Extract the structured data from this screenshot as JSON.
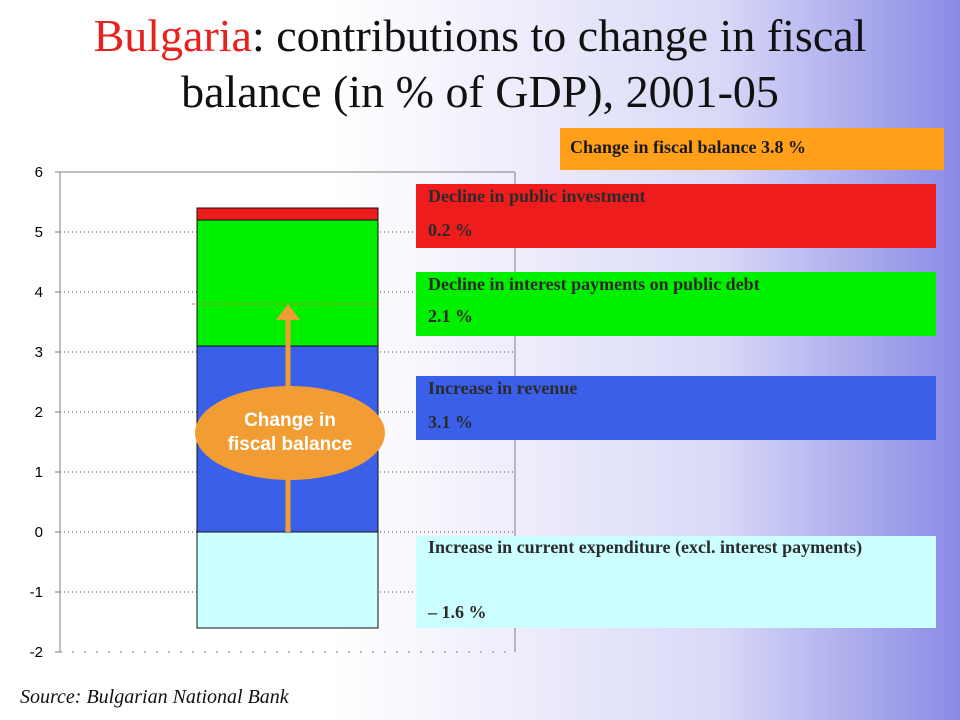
{
  "title": {
    "country": "Bulgaria",
    "rest": ": contributions to change in fiscal",
    "line2": "balance (in % of GDP), 2001-05"
  },
  "total_label": "Change in fiscal balance 3.8 %",
  "arrow_label_line1": "Change in",
  "arrow_label_line2": "fiscal balance",
  "source": "Source: Bulgarian National Bank",
  "colors": {
    "investment": "#ee1c1c",
    "interest": "#00f000",
    "revenue": "#3a5fe8",
    "current_exp": "#ccffff",
    "total": "#ff9f1a",
    "arrow": "#f29d33"
  },
  "legend": [
    {
      "key": "investment",
      "label": "Decline in public investment",
      "value": "0.2 %"
    },
    {
      "key": "interest",
      "label": "Decline in interest payments on public debt",
      "value": "2.1 %"
    },
    {
      "key": "revenue",
      "label": "Increase in revenue",
      "value": "3.1 %"
    },
    {
      "key": "current_exp",
      "label": "Increase in current expenditure (excl. interest payments)",
      "value": "– 1.6 %"
    }
  ],
  "chart_data": {
    "type": "bar",
    "stacked": true,
    "categories": [
      ""
    ],
    "series": [
      {
        "name": "Increase in current expenditure (excl. interest payments)",
        "values": [
          -1.6
        ]
      },
      {
        "name": "Increase in revenue",
        "values": [
          3.1
        ]
      },
      {
        "name": "Decline in interest payments on public debt",
        "values": [
          2.1
        ]
      },
      {
        "name": "Decline in public investment",
        "values": [
          0.2
        ]
      }
    ],
    "total": 3.8,
    "ylim": [
      -2,
      6
    ],
    "yticks": [
      "-2",
      "-1",
      "0",
      "1",
      "2",
      "3",
      "4",
      "5",
      "6"
    ],
    "grid": true
  }
}
